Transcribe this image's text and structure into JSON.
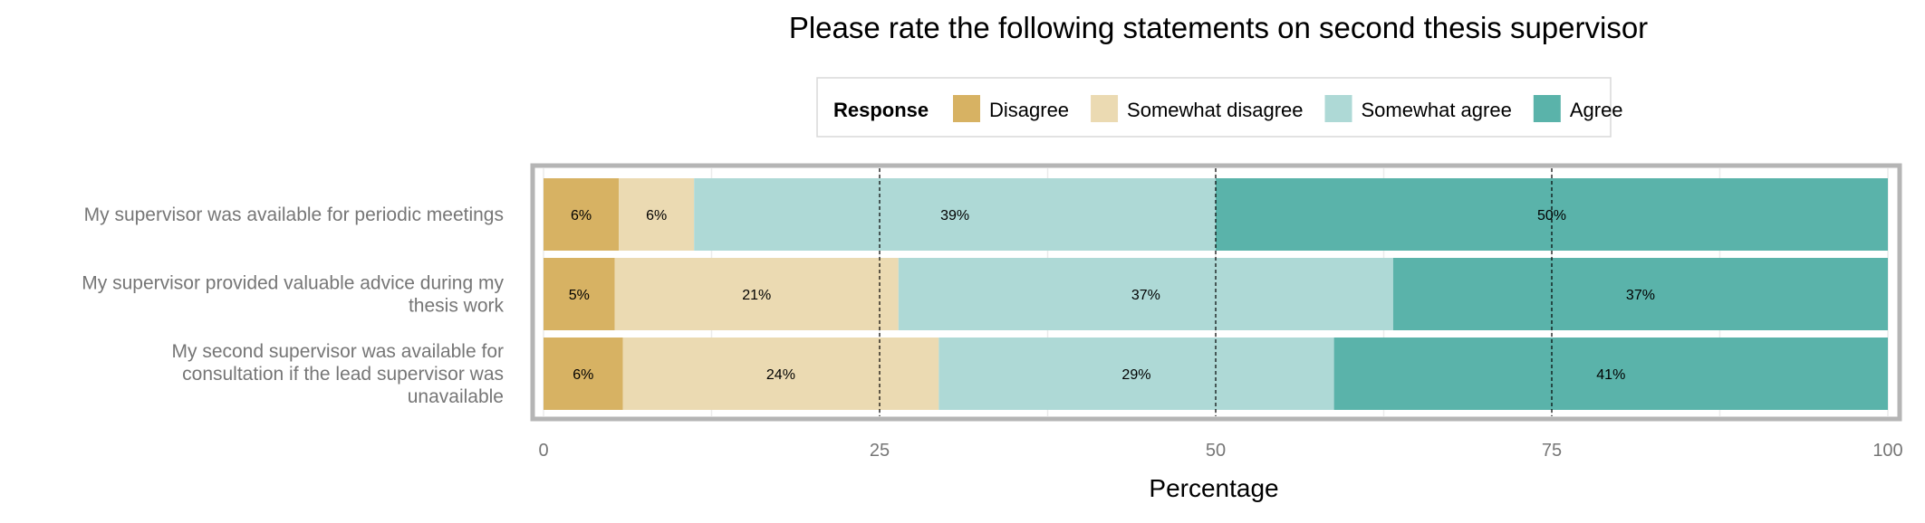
{
  "chart_data": {
    "type": "bar",
    "orientation": "horizontal",
    "stacked": true,
    "title": "Please rate the following statements on second thesis supervisor",
    "xlabel": "Percentage",
    "ylabel": "",
    "xlim": [
      0,
      100
    ],
    "xticks": [
      "0",
      "25",
      "50",
      "75",
      "100"
    ],
    "grid": true,
    "reference_lines": [
      25,
      50,
      75
    ],
    "legend": {
      "title": "Response",
      "placement": "top"
    },
    "categories": [
      [
        "My supervisor was available for periodic meetings"
      ],
      [
        "My supervisor provided valuable advice during my",
        "thesis work"
      ],
      [
        "My second supervisor was available for",
        "consultation if the lead supervisor was",
        "unavailable"
      ]
    ],
    "series": [
      {
        "name": "Disagree",
        "color": "#D7B263",
        "values": [
          5.6,
          5.3,
          5.9
        ],
        "labels": [
          "6%",
          "5%",
          "6%"
        ]
      },
      {
        "name": "Somewhat disagree",
        "color": "#EBDAB2",
        "values": [
          5.6,
          21.1,
          23.5
        ],
        "labels": [
          "6%",
          "21%",
          "24%"
        ]
      },
      {
        "name": "Somewhat agree",
        "color": "#AED9D6",
        "values": [
          38.8,
          36.8,
          29.4
        ],
        "labels": [
          "39%",
          "37%",
          "29%"
        ]
      },
      {
        "name": "Agree",
        "color": "#5AB3AA",
        "values": [
          50.0,
          36.8,
          41.2
        ],
        "labels": [
          "50%",
          "37%",
          "41%"
        ]
      }
    ]
  }
}
